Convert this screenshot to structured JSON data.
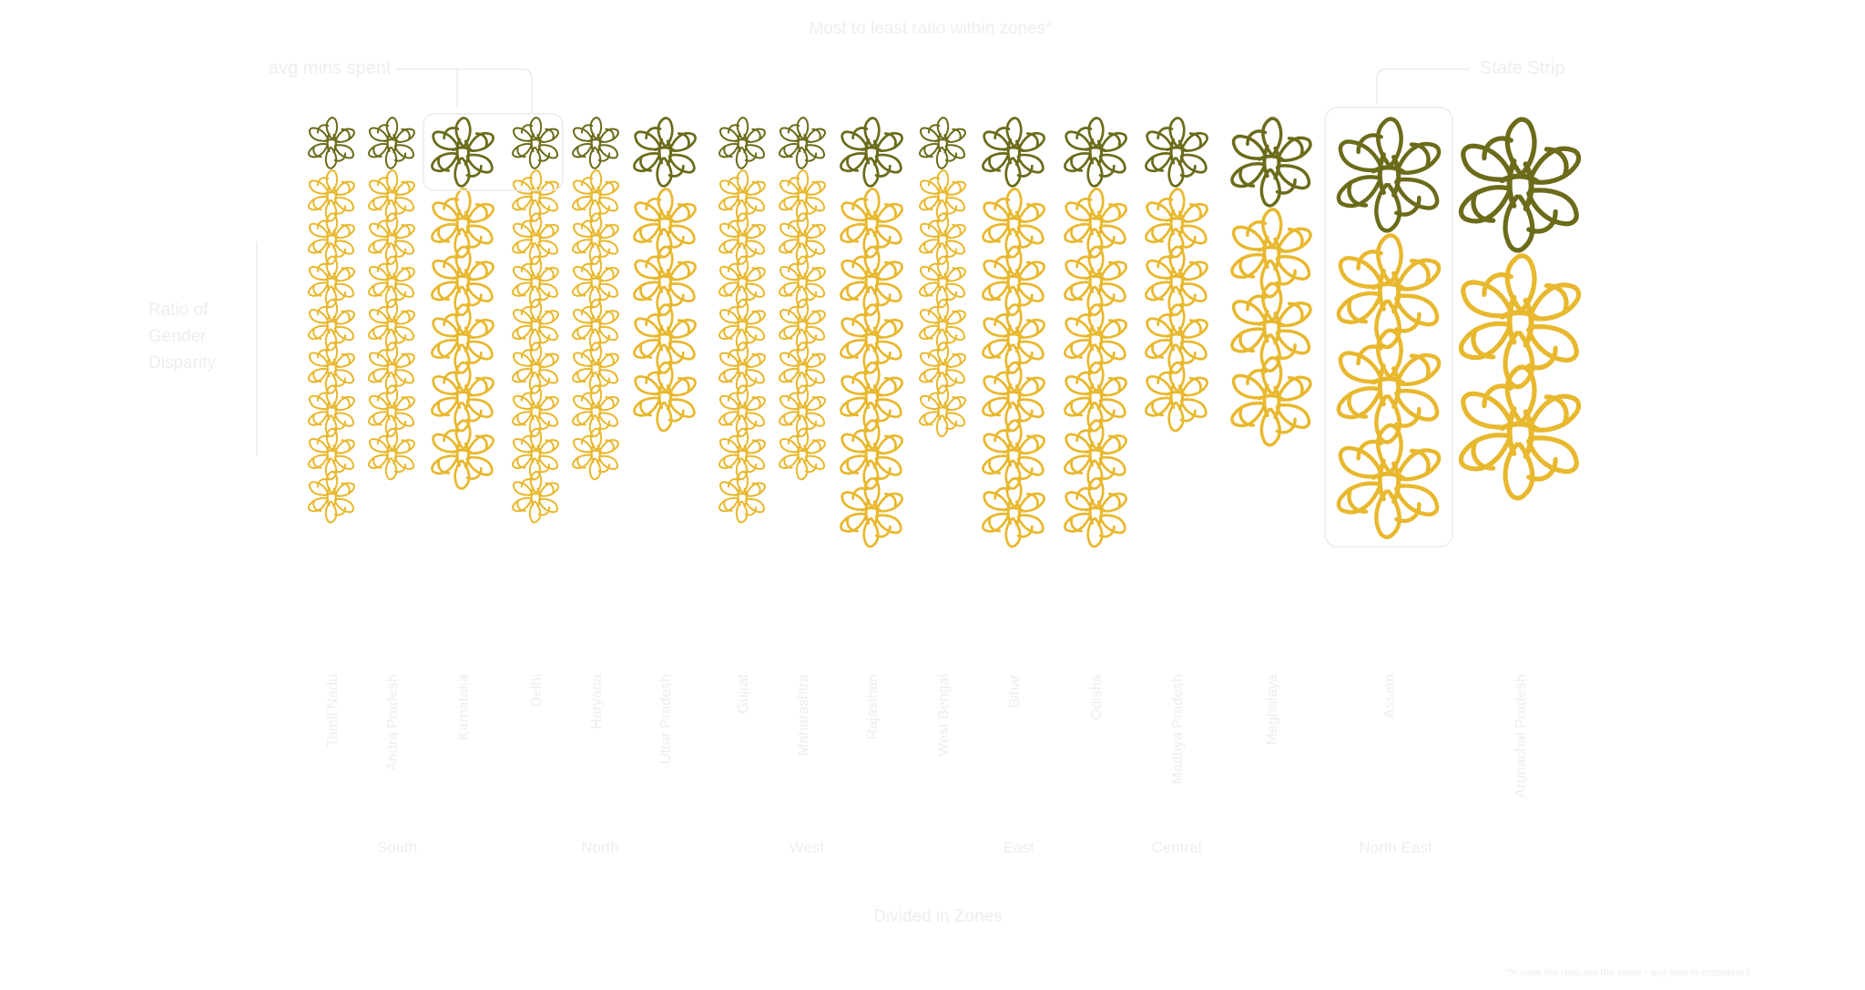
{
  "chart_data": {
    "type": "pictogram",
    "title": "Most to least ratio within zones*",
    "xlabel": "Divided in Zones",
    "ylabel": "Ratio of Gender Disparity",
    "annotations": {
      "avg_mins": "avg mins spent",
      "state_strip": "State Strip",
      "footnote": "*In case the ratio are the same - avg time is considered"
    },
    "colors": {
      "header": "#6b6b1a",
      "unit": "#e8b82e",
      "label": "#eeeeee"
    },
    "zones": [
      "South",
      "North",
      "West",
      "East",
      "Central",
      "North East"
    ],
    "states": [
      {
        "name": "Tamil Nadu",
        "zone": "South",
        "ratio": 8,
        "size": "small"
      },
      {
        "name": "Andra Pradesh",
        "zone": "South",
        "ratio": 7,
        "size": "small"
      },
      {
        "name": "Karnataka",
        "zone": "South",
        "ratio": 5,
        "size": "medium"
      },
      {
        "name": "Delhi",
        "zone": "North",
        "ratio": 8,
        "size": "small"
      },
      {
        "name": "Haryana",
        "zone": "North",
        "ratio": 7,
        "size": "small"
      },
      {
        "name": "Uttar Pradesh",
        "zone": "North",
        "ratio": 4,
        "size": "medium"
      },
      {
        "name": "Gujrat",
        "zone": "West",
        "ratio": 8,
        "size": "small"
      },
      {
        "name": "Maharashtra",
        "zone": "West",
        "ratio": 7,
        "size": "small"
      },
      {
        "name": "Rajasthan",
        "zone": "West",
        "ratio": 6,
        "size": "medium"
      },
      {
        "name": "West Bengal",
        "zone": "East",
        "ratio": 6,
        "size": "small"
      },
      {
        "name": "Bihar",
        "zone": "East",
        "ratio": 6,
        "size": "medium"
      },
      {
        "name": "Odisha",
        "zone": "East",
        "ratio": 6,
        "size": "medium"
      },
      {
        "name": "Madhya Pradesh",
        "zone": "Central",
        "ratio": 4,
        "size": "medium"
      },
      {
        "name": "Meghalaya",
        "zone": "North East",
        "ratio": 3,
        "size": "large"
      },
      {
        "name": "Assam",
        "zone": "North East",
        "ratio": 3,
        "size": "xlarge"
      },
      {
        "name": "Arunachal Pradesh",
        "zone": "North East",
        "ratio": 2,
        "size": "xxlarge"
      }
    ]
  }
}
